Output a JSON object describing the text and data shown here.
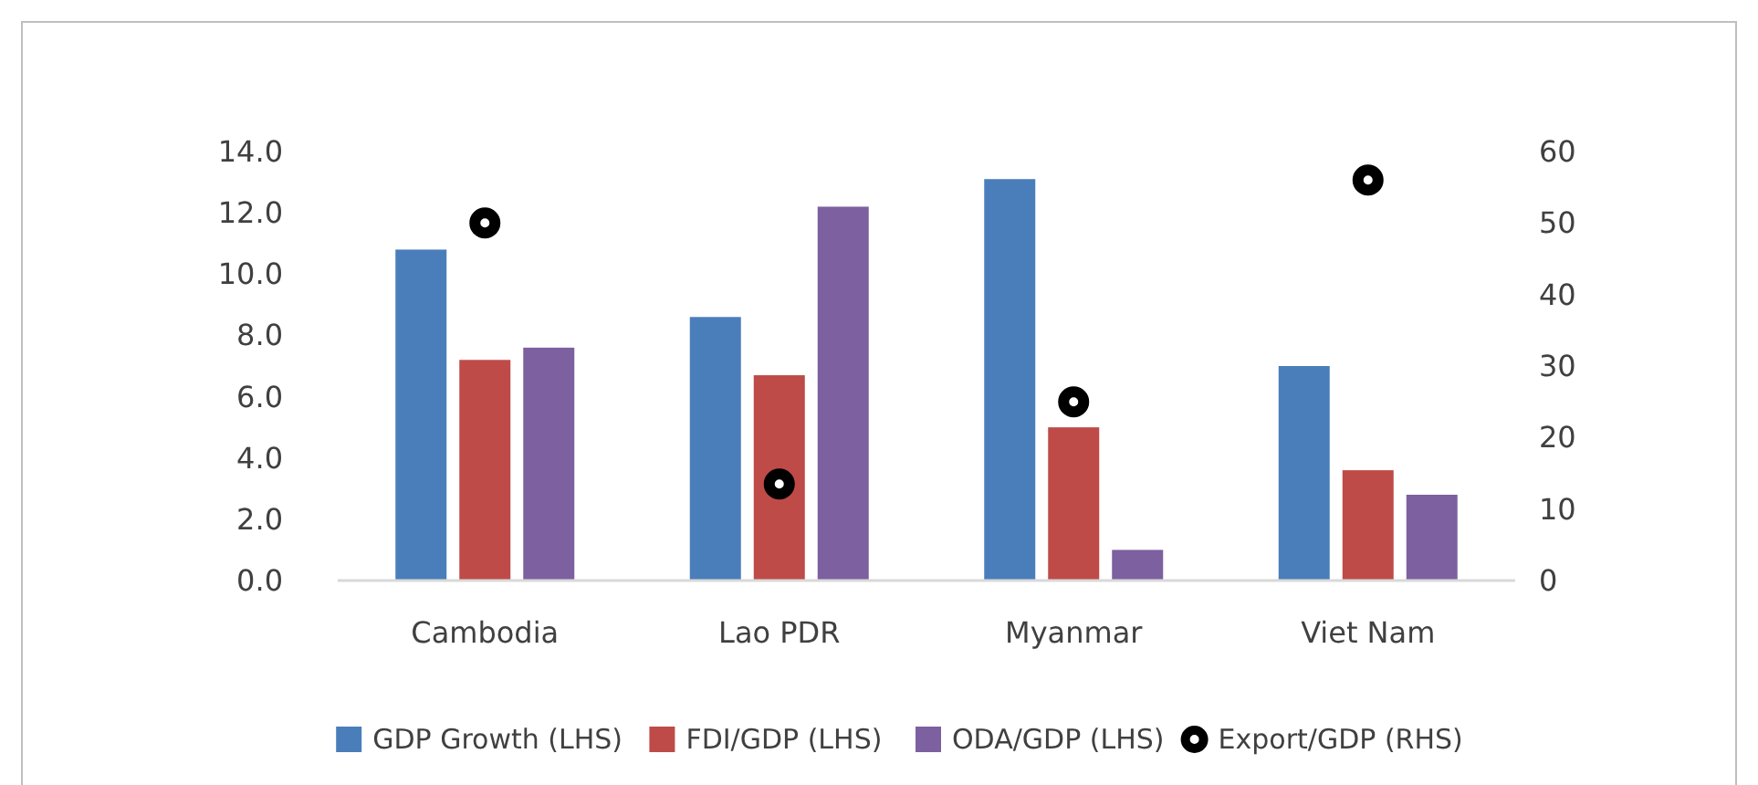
{
  "chart_data": {
    "type": "bar",
    "categories": [
      "Cambodia",
      "Lao PDR",
      "Myanmar",
      "Viet Nam"
    ],
    "series": [
      {
        "name": "GDP Growth (LHS)",
        "color": "#4a7ebb",
        "values": [
          10.8,
          8.6,
          13.1,
          7.0
        ]
      },
      {
        "name": "FDI/GDP (LHS)",
        "color": "#be4b48",
        "values": [
          7.2,
          6.7,
          5.0,
          3.6
        ]
      },
      {
        "name": "ODA/GDP (LHS)",
        "color": "#7d60a0",
        "values": [
          7.6,
          12.2,
          1.0,
          2.8
        ]
      },
      {
        "name": "Export/GDP (RHS)",
        "type": "scatter",
        "axis": "y2",
        "color": "#000000",
        "marker": "circle",
        "values": [
          50,
          13.5,
          25,
          56
        ]
      }
    ],
    "ylim": [
      0,
      14
    ],
    "yticks": [
      {
        "value": 0,
        "label": "0.0"
      },
      {
        "value": 2,
        "label": "2.0"
      },
      {
        "value": 4,
        "label": "4.0"
      },
      {
        "value": 6,
        "label": "6.0"
      },
      {
        "value": 8,
        "label": "8.0"
      },
      {
        "value": 10,
        "label": "10.0"
      },
      {
        "value": 12,
        "label": "12.0"
      },
      {
        "value": 14,
        "label": "14.0"
      }
    ],
    "y2lim": [
      0,
      60
    ],
    "y2ticks": [
      0,
      10,
      20,
      30,
      40,
      50,
      60
    ],
    "grid": false,
    "legend": "bottom"
  }
}
